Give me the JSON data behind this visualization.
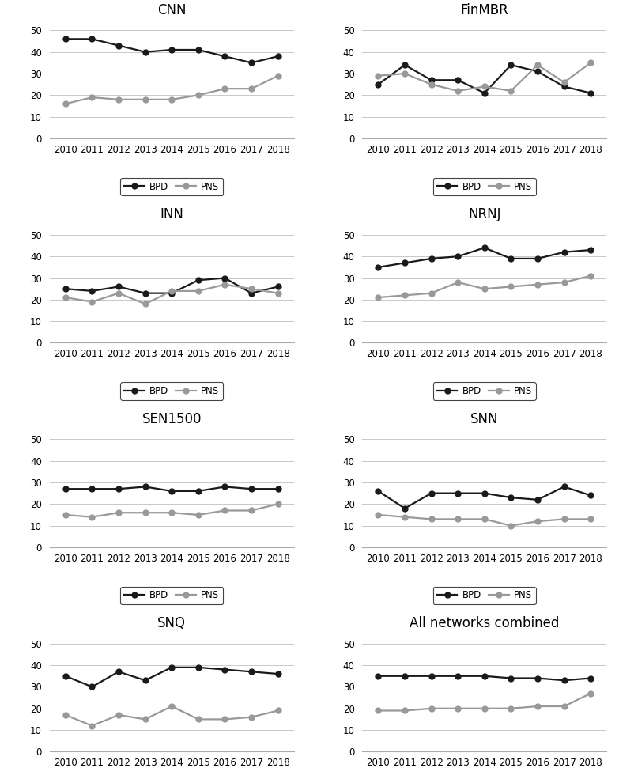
{
  "years": [
    2010,
    2011,
    2012,
    2013,
    2014,
    2015,
    2016,
    2017,
    2018
  ],
  "charts": [
    {
      "title": "CNN",
      "BPD": [
        46,
        46,
        43,
        40,
        41,
        41,
        38,
        35,
        38
      ],
      "PNS": [
        16,
        19,
        18,
        18,
        18,
        20,
        23,
        23,
        29
      ]
    },
    {
      "title": "FinMBR",
      "BPD": [
        25,
        34,
        27,
        27,
        21,
        34,
        31,
        24,
        21
      ],
      "PNS": [
        29,
        30,
        25,
        22,
        24,
        22,
        34,
        26,
        35
      ]
    },
    {
      "title": "INN",
      "BPD": [
        25,
        24,
        26,
        23,
        23,
        29,
        30,
        23,
        26
      ],
      "PNS": [
        21,
        19,
        23,
        18,
        24,
        24,
        27,
        25,
        23
      ]
    },
    {
      "title": "NRNJ",
      "BPD": [
        35,
        37,
        39,
        40,
        44,
        39,
        39,
        42,
        43
      ],
      "PNS": [
        21,
        22,
        23,
        28,
        25,
        26,
        27,
        28,
        31
      ]
    },
    {
      "title": "SEN1500",
      "BPD": [
        27,
        27,
        27,
        28,
        26,
        26,
        28,
        27,
        27
      ],
      "PNS": [
        15,
        14,
        16,
        16,
        16,
        15,
        17,
        17,
        20
      ]
    },
    {
      "title": "SNN",
      "BPD": [
        26,
        18,
        25,
        25,
        25,
        23,
        22,
        28,
        24
      ],
      "PNS": [
        15,
        14,
        13,
        13,
        13,
        10,
        12,
        13,
        13
      ]
    },
    {
      "title": "SNQ",
      "BPD": [
        35,
        30,
        37,
        33,
        39,
        39,
        38,
        37,
        36
      ],
      "PNS": [
        17,
        12,
        17,
        15,
        21,
        15,
        15,
        16,
        19
      ]
    },
    {
      "title": "All networks combined",
      "BPD": [
        35,
        35,
        35,
        35,
        35,
        34,
        34,
        33,
        34
      ],
      "PNS": [
        19,
        19,
        20,
        20,
        20,
        20,
        21,
        21,
        27
      ]
    }
  ],
  "bpd_color": "#1a1a1a",
  "pns_color": "#999999",
  "line_width": 1.6,
  "marker_size": 5,
  "ylim": [
    0,
    55
  ],
  "yticks": [
    0,
    10,
    20,
    30,
    40,
    50
  ],
  "background_color": "#ffffff",
  "title_fontsize": 12,
  "tick_fontsize": 8.5,
  "legend_fontsize": 8.5
}
